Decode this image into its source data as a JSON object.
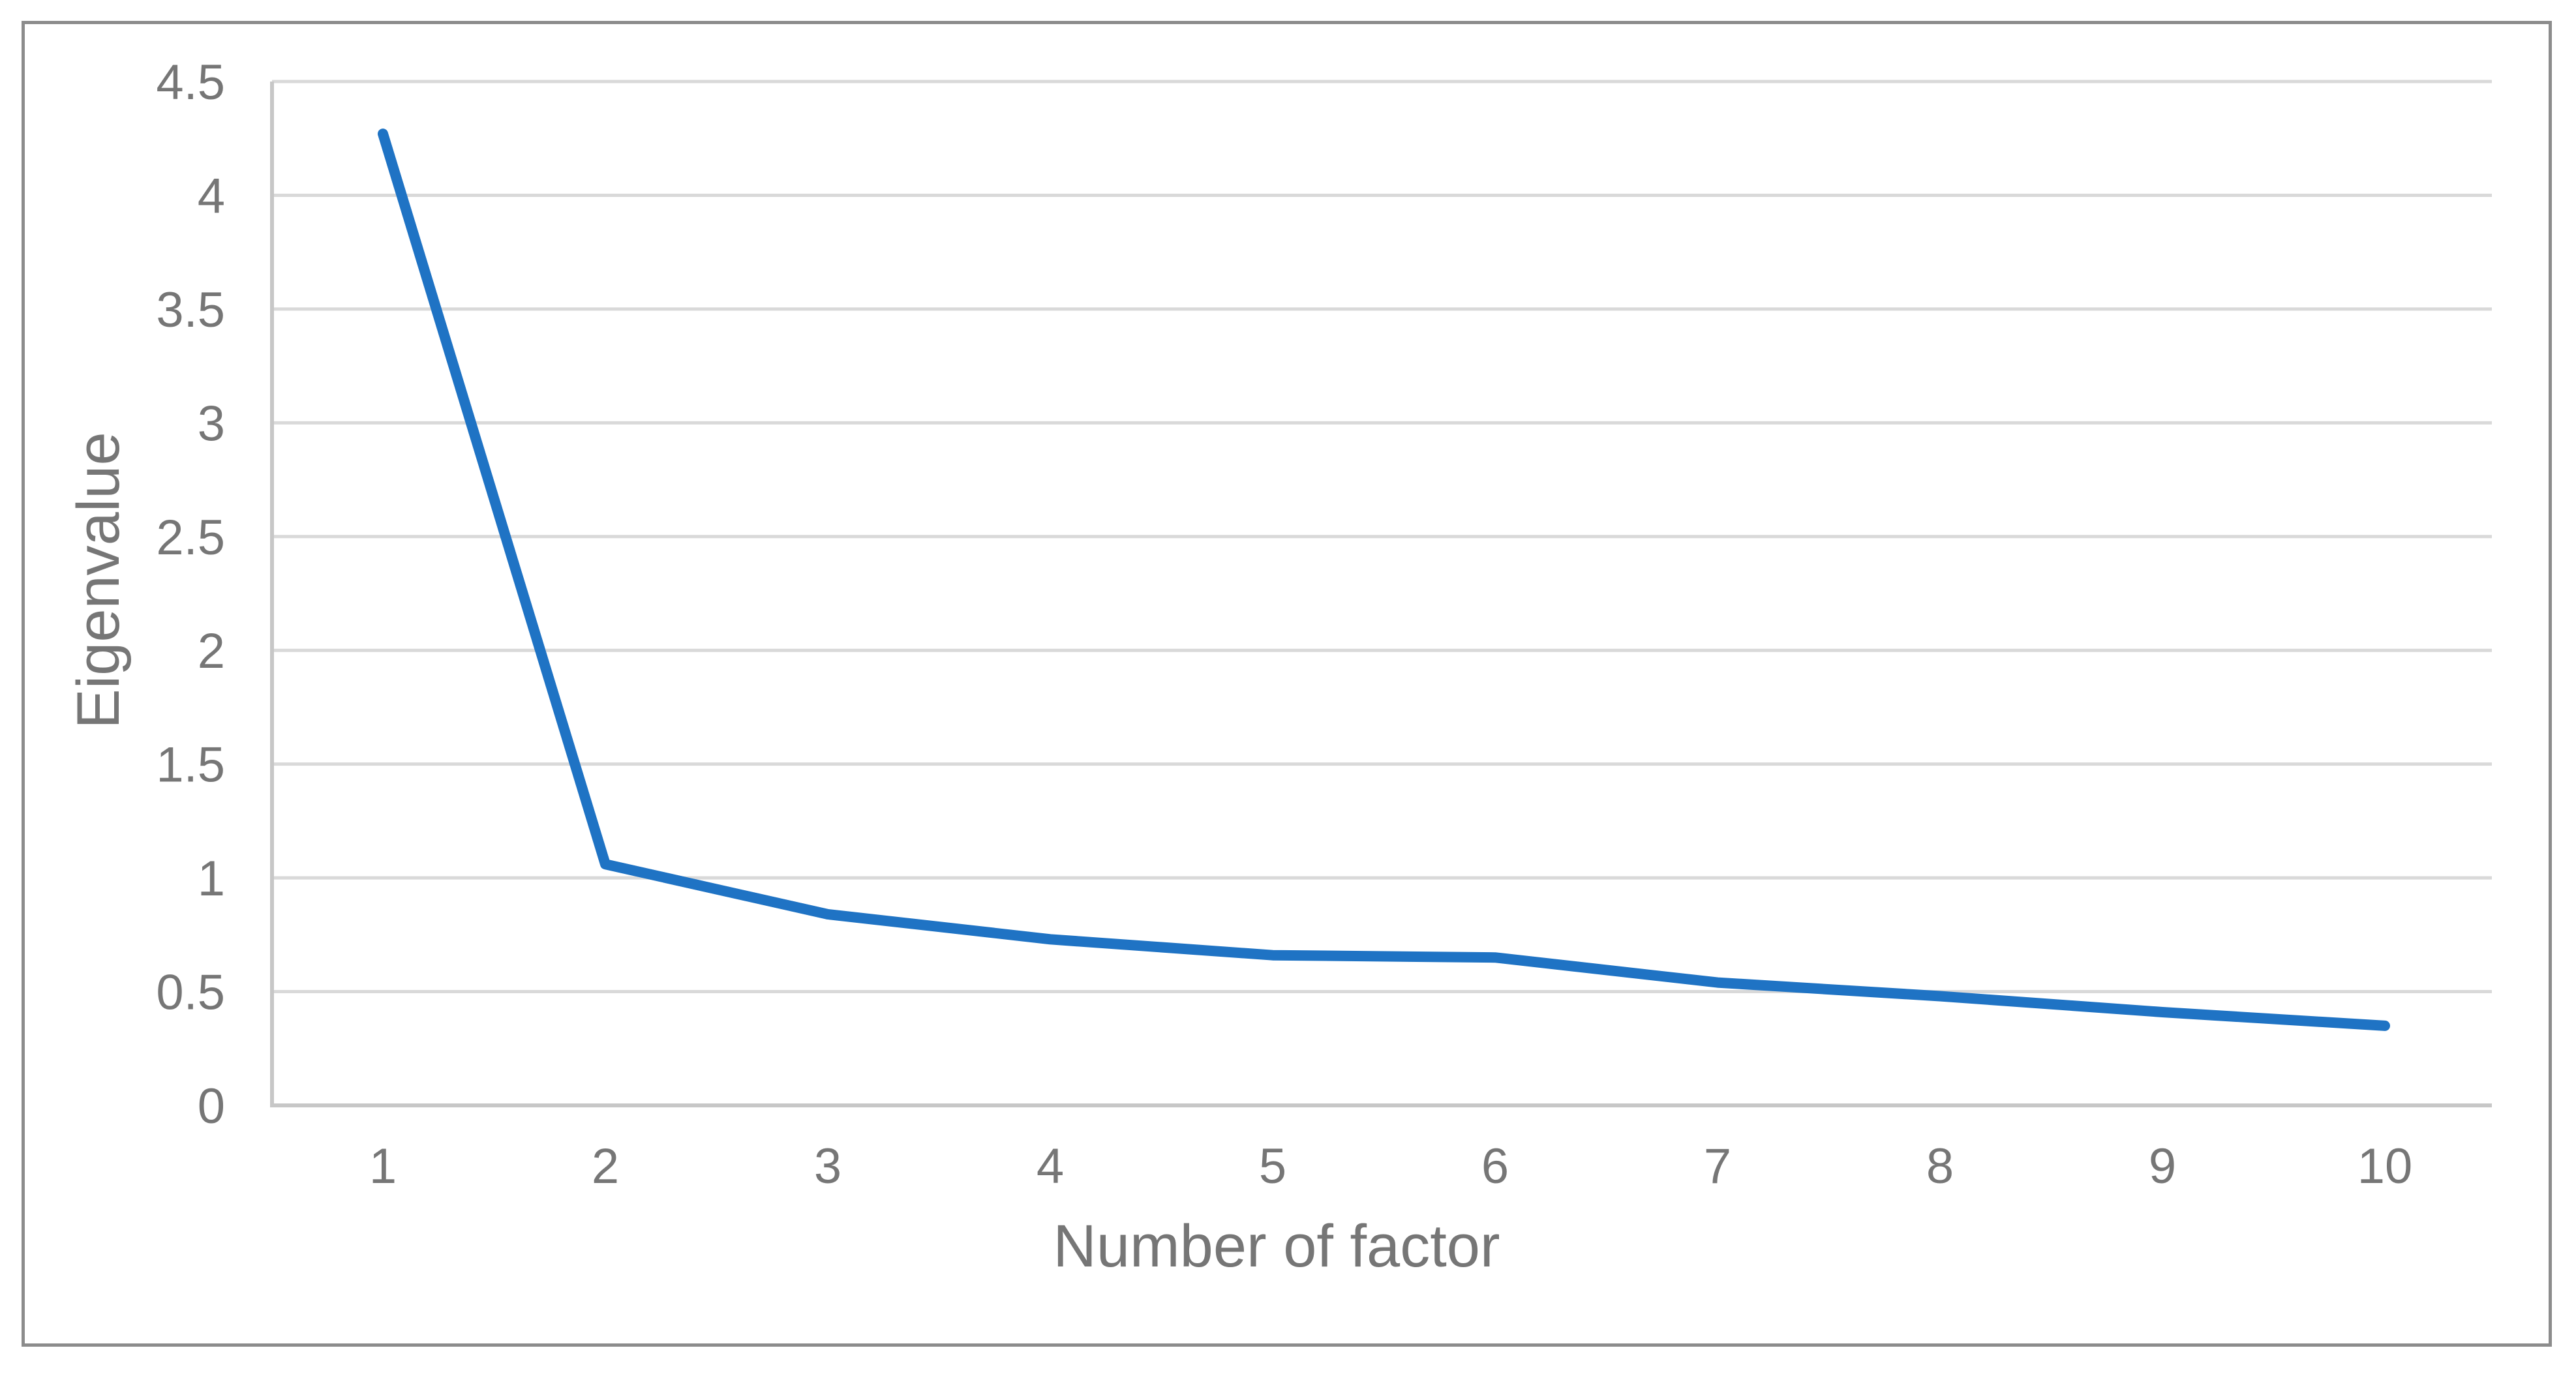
{
  "chart_data": {
    "type": "line",
    "title": "",
    "xlabel": "Number of factor",
    "ylabel": "Eigenvalue",
    "categories": [
      "1",
      "2",
      "3",
      "4",
      "5",
      "6",
      "7",
      "8",
      "9",
      "10"
    ],
    "series": [
      {
        "name": "Eigenvalue",
        "values": [
          4.27,
          1.06,
          0.84,
          0.73,
          0.66,
          0.65,
          0.54,
          0.48,
          0.41,
          0.35
        ]
      }
    ],
    "ylim": [
      0,
      4.5
    ],
    "y_tick_step": 0.5,
    "y_ticks": [
      0,
      0.5,
      1,
      1.5,
      2,
      2.5,
      3,
      3.5,
      4,
      4.5
    ],
    "y_tick_labels": [
      "0",
      "0.5",
      "1",
      "1.5",
      "2",
      "2.5",
      "3",
      "3.5",
      "4",
      "4.5"
    ],
    "grid": "horizontal",
    "legend_position": "none",
    "colors": {
      "line": "#1F73C4",
      "gridline": "#D9D9D9",
      "axis_line": "#C7C7C7",
      "text": "#767676",
      "frame_border": "#8C8C8C",
      "background": "#FFFFFF"
    }
  }
}
